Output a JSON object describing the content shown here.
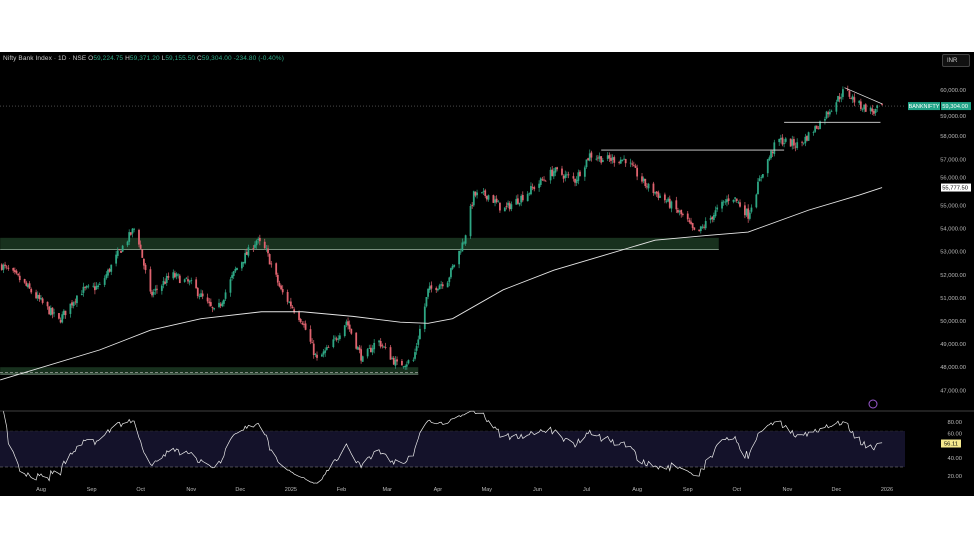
{
  "header": {
    "symbol": "Nifty Bank Index · 1D · NSE",
    "open_label": "O",
    "open": "59,224.75",
    "high_label": "H",
    "high": "59,371.20",
    "low_label": "L",
    "low": "59,155.50",
    "close_label": "C",
    "close": "59,304.00",
    "change": "-234.80 (-0.40%)"
  },
  "currency": "INR",
  "colors": {
    "background": "#000000",
    "up": "#2ea784",
    "down": "#e0636f",
    "zone": "#1e3d26",
    "ma": "#e6e6e6",
    "rsi_band": "#14122a",
    "price_label": "#20a387",
    "rsi_label": "#f5e98e"
  },
  "chart_data": {
    "type": "candlestick",
    "title": "",
    "price_axis": {
      "ticks": [
        47000,
        48000,
        49000,
        50000,
        51000,
        52000,
        53000,
        54000,
        55000,
        56000,
        57000,
        58000,
        59000,
        60000
      ],
      "tick_labels": [
        "47,000.00",
        "48,000.00",
        "49,000.00",
        "50,000.00",
        "51,000.00",
        "52,000.00",
        "53,000.00",
        "54,000.00",
        "55,000.00",
        "56,000.00",
        "57,000.00",
        "58,000.00",
        "59,000.00",
        "60,000.00"
      ],
      "range": [
        46400,
        60300
      ]
    },
    "time_axis": {
      "labels": [
        {
          "date": "2024-08-01",
          "label": "Aug"
        },
        {
          "date": "2024-09-01",
          "label": "Sep"
        },
        {
          "date": "2024-10-01",
          "label": "Oct"
        },
        {
          "date": "2024-11-01",
          "label": "Nov"
        },
        {
          "date": "2024-12-01",
          "label": "Dec"
        },
        {
          "date": "2025-01-01",
          "label": "2025"
        },
        {
          "date": "2025-02-01",
          "label": "Feb"
        },
        {
          "date": "2025-03-01",
          "label": "Mar"
        },
        {
          "date": "2025-04-01",
          "label": "Apr"
        },
        {
          "date": "2025-05-01",
          "label": "May"
        },
        {
          "date": "2025-06-01",
          "label": "Jun"
        },
        {
          "date": "2025-07-01",
          "label": "Jul"
        },
        {
          "date": "2025-08-01",
          "label": "Aug"
        },
        {
          "date": "2025-09-01",
          "label": "Sep"
        },
        {
          "date": "2025-10-01",
          "label": "Oct"
        },
        {
          "date": "2025-11-01",
          "label": "Nov"
        },
        {
          "date": "2025-12-01",
          "label": "Dec"
        },
        {
          "date": "2026-01-01",
          "label": "2026"
        }
      ],
      "range": [
        "2024-07-07",
        "2026-01-20"
      ]
    },
    "close_path": [
      [
        "2024-07-08",
        52400
      ],
      [
        "2024-07-19",
        51800
      ],
      [
        "2024-07-31",
        50900
      ],
      [
        "2024-08-12",
        50000
      ],
      [
        "2024-08-25",
        51300
      ],
      [
        "2024-09-06",
        51500
      ],
      [
        "2024-09-18",
        53000
      ],
      [
        "2024-09-28",
        54100
      ],
      [
        "2024-10-07",
        51100
      ],
      [
        "2024-10-20",
        52000
      ],
      [
        "2024-11-01",
        51600
      ],
      [
        "2024-11-16",
        50300
      ],
      [
        "2024-11-28",
        52200
      ],
      [
        "2024-12-11",
        53500
      ],
      [
        "2024-12-17",
        53000
      ],
      [
        "2024-12-26",
        51300
      ],
      [
        "2025-01-08",
        50000
      ],
      [
        "2025-01-17",
        48300
      ],
      [
        "2025-01-26",
        48950
      ],
      [
        "2025-02-04",
        50000
      ],
      [
        "2025-02-14",
        48300
      ],
      [
        "2025-02-23",
        49200
      ],
      [
        "2025-03-07",
        48100
      ],
      [
        "2025-03-17",
        48300
      ],
      [
        "2025-03-26",
        51300
      ],
      [
        "2025-04-07",
        51800
      ],
      [
        "2025-04-17",
        53500
      ],
      [
        "2025-04-23",
        55450
      ],
      [
        "2025-05-02",
        55450
      ],
      [
        "2025-05-11",
        54800
      ],
      [
        "2025-05-24",
        55450
      ],
      [
        "2025-06-11",
        56500
      ],
      [
        "2025-06-24",
        56100
      ],
      [
        "2025-07-03",
        57200
      ],
      [
        "2025-07-12",
        57000
      ],
      [
        "2025-07-25",
        57000
      ],
      [
        "2025-08-06",
        55900
      ],
      [
        "2025-08-18",
        55250
      ],
      [
        "2025-08-31",
        54400
      ],
      [
        "2025-09-06",
        53700
      ],
      [
        "2025-09-19",
        54800
      ],
      [
        "2025-09-28",
        55450
      ],
      [
        "2025-10-08",
        54600
      ],
      [
        "2025-10-17",
        56500
      ],
      [
        "2025-10-26",
        57850
      ],
      [
        "2025-11-08",
        57600
      ],
      [
        "2025-11-20",
        58500
      ],
      [
        "2025-11-29",
        59350
      ],
      [
        "2025-12-06",
        60000
      ],
      [
        "2025-12-15",
        59350
      ],
      [
        "2025-12-24",
        59050
      ],
      [
        "2025-12-29",
        59304
      ]
    ],
    "moving_average": [
      [
        "2024-07-07",
        47450
      ],
      [
        "2024-09-06",
        48750
      ],
      [
        "2024-10-07",
        49600
      ],
      [
        "2024-11-07",
        50100
      ],
      [
        "2024-12-14",
        50400
      ],
      [
        "2025-01-08",
        50400
      ],
      [
        "2025-02-08",
        50200
      ],
      [
        "2025-03-09",
        49950
      ],
      [
        "2025-03-26",
        49900
      ],
      [
        "2025-04-10",
        50100
      ],
      [
        "2025-05-11",
        51350
      ],
      [
        "2025-06-11",
        52200
      ],
      [
        "2025-07-12",
        52850
      ],
      [
        "2025-08-12",
        53500
      ],
      [
        "2025-09-12",
        53700
      ],
      [
        "2025-10-08",
        53850
      ],
      [
        "2025-11-14",
        54800
      ],
      [
        "2025-12-15",
        55450
      ],
      [
        "2025-12-29",
        55777.5
      ]
    ],
    "zones": [
      {
        "from": "2024-07-07",
        "to": "2025-09-20",
        "low": 53100,
        "high": 53600
      },
      {
        "from": "2024-07-07",
        "to": "2025-03-20",
        "low": 47700,
        "high": 48000
      }
    ],
    "levels": [
      {
        "from": "2025-07-10",
        "to": "2025-10-30",
        "price": 57400
      },
      {
        "from": "2025-10-30",
        "to": "2025-12-28",
        "price": 58600
      }
    ],
    "trendline": [
      [
        "2025-12-06",
        60100
      ],
      [
        "2025-12-29",
        59400
      ]
    ],
    "last_price": 59304,
    "last_price_label": "59,304.00",
    "symbol_tag": "BANKNIFTY",
    "ma_value_label": "55,777.50",
    "rsi": {
      "ticks": [
        20,
        40,
        60,
        80
      ],
      "tick_labels": [
        "20.00",
        "40.00",
        "60.00",
        "80.00"
      ],
      "upper_band": 70,
      "lower_band": 30,
      "value": 56.11,
      "value_label": "56.11",
      "range": [
        10,
        95
      ]
    }
  }
}
